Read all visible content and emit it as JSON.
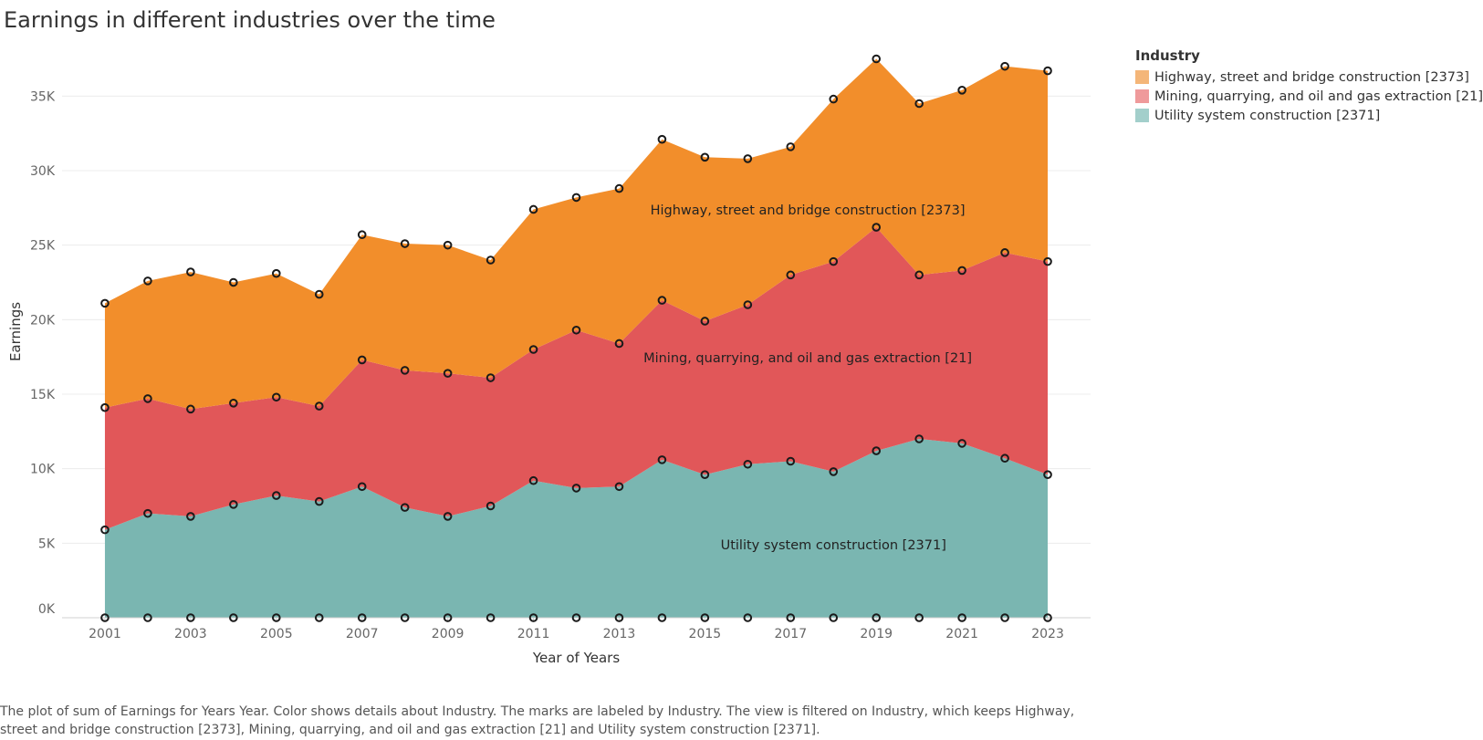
{
  "title": "Earnings in different industries over the time",
  "caption": "The plot of sum of Earnings for Years Year.  Color shows details about Industry.  The marks are labeled by Industry. The view is filtered on Industry, which keeps Highway, street and bridge construction [2373], Mining, quarrying, and oil and gas extraction [21] and Utility system construction [2371].",
  "legend": {
    "title": "Industry",
    "items": [
      {
        "label": "Highway, street and bridge construction [2373]",
        "color": "#f4b679"
      },
      {
        "label": "Mining, quarrying, and oil and gas extraction [21]",
        "color": "#ef9a9b"
      },
      {
        "label": "Utility system construction [2371]",
        "color": "#a3cfcb"
      }
    ]
  },
  "chart_data": {
    "type": "area",
    "stacked": true,
    "xlabel": "Year of Years",
    "ylabel": "Earnings",
    "ylim": [
      0,
      39000
    ],
    "yticks": [
      0,
      5000,
      10000,
      15000,
      20000,
      25000,
      30000,
      35000
    ],
    "ytick_labels": [
      "0K",
      "5K",
      "10K",
      "15K",
      "20K",
      "25K",
      "30K",
      "35K"
    ],
    "xlim": [
      2000,
      2024
    ],
    "xticks": [
      2001,
      2003,
      2005,
      2007,
      2009,
      2011,
      2013,
      2015,
      2017,
      2019,
      2021,
      2023
    ],
    "x": [
      2001,
      2002,
      2003,
      2004,
      2005,
      2006,
      2007,
      2008,
      2009,
      2010,
      2011,
      2012,
      2013,
      2014,
      2015,
      2016,
      2017,
      2018,
      2019,
      2020,
      2021,
      2022,
      2023
    ],
    "grid": true,
    "legend_position": "top-right",
    "series": [
      {
        "name": "Utility system construction [2371]",
        "color": "#7ab6b1",
        "values": [
          5900,
          7000,
          6800,
          7600,
          8200,
          7800,
          8800,
          7400,
          6800,
          7500,
          9200,
          8700,
          8800,
          10600,
          9600,
          10300,
          10500,
          9800,
          11200,
          12000,
          11700,
          10700,
          9600
        ],
        "label": "Utility system construction [2371]"
      },
      {
        "name": "Mining, quarrying, and oil and gas extraction [21]",
        "color": "#e15759",
        "values": [
          8200,
          7700,
          7200,
          6800,
          6600,
          6400,
          8500,
          9200,
          9600,
          8600,
          8800,
          10600,
          9600,
          10700,
          10300,
          10700,
          12500,
          14100,
          15000,
          11000,
          11600,
          13800,
          14300
        ],
        "label": "Mining, quarrying, and oil and gas extraction [21]"
      },
      {
        "name": "Highway, street and bridge construction [2373]",
        "color": "#f28e2b",
        "values": [
          7000,
          7900,
          9200,
          8100,
          8300,
          7500,
          8400,
          8500,
          8600,
          7900,
          9400,
          8900,
          10400,
          10800,
          11000,
          9800,
          8600,
          10900,
          11300,
          11500,
          12100,
          12500,
          12800
        ],
        "label": "Highway, street and bridge construction [2373]"
      }
    ]
  }
}
